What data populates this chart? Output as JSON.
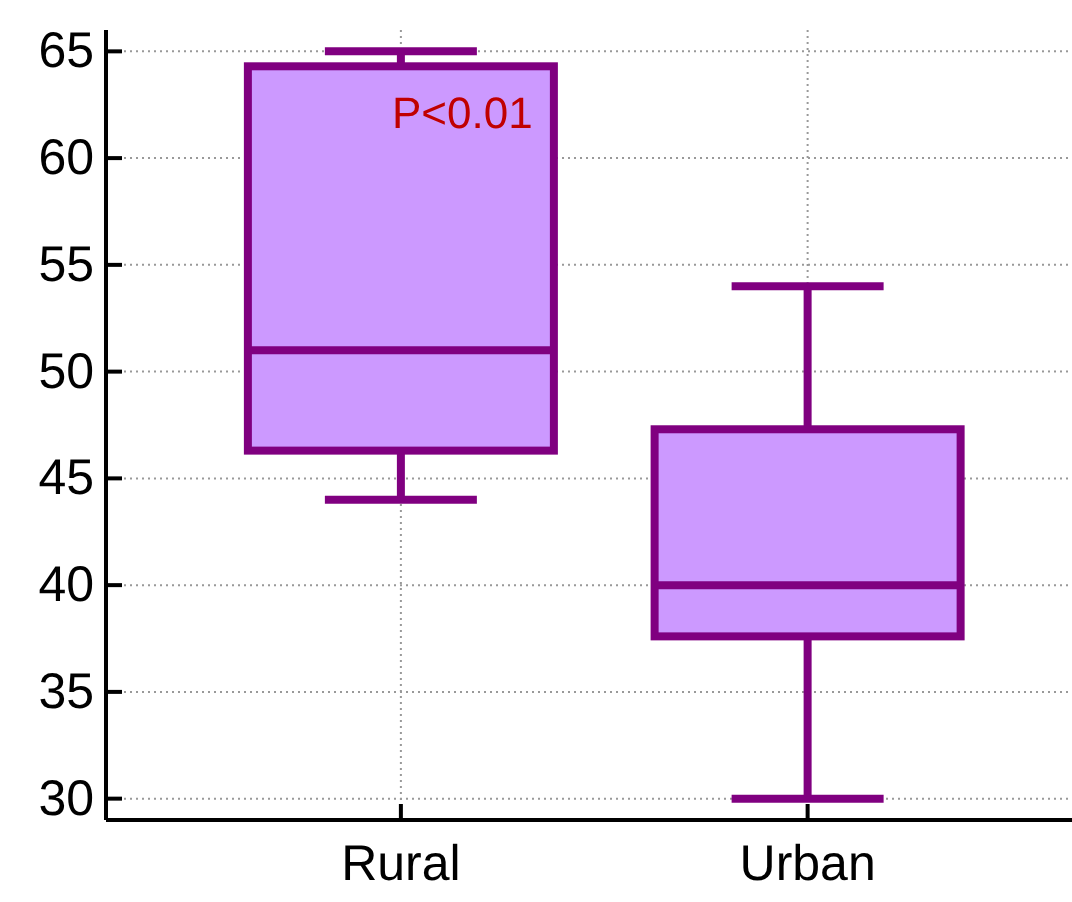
{
  "chart_data": {
    "type": "box",
    "categories": [
      "Rural",
      "Urban"
    ],
    "boxes": [
      {
        "low": 44,
        "q1": 46.3,
        "median": 51,
        "q3": 64.3,
        "high": 65
      },
      {
        "low": 30,
        "q1": 37.6,
        "median": 40,
        "q3": 47.3,
        "high": 54
      }
    ],
    "color": "#cc99ff",
    "ylim": [
      29,
      66
    ],
    "yticks": [
      30,
      35,
      40,
      45,
      50,
      55,
      60,
      65
    ],
    "grid": true,
    "annotations": [
      "P<0.01"
    ]
  }
}
